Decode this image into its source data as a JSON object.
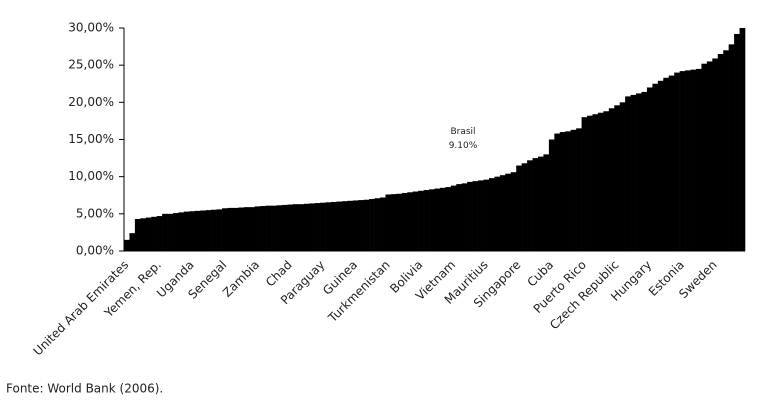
{
  "chart_data": {
    "type": "bar",
    "color": "#000000",
    "categories": [
      "United Arab Emirates",
      null,
      null,
      null,
      null,
      null,
      "Yemen, Rep.",
      null,
      null,
      null,
      null,
      null,
      "Uganda",
      null,
      null,
      null,
      null,
      null,
      "Senegal",
      null,
      null,
      null,
      null,
      null,
      "Zambia",
      null,
      null,
      null,
      null,
      null,
      "Chad",
      null,
      null,
      null,
      null,
      null,
      "Paraguay",
      null,
      null,
      null,
      null,
      null,
      "Guinea",
      null,
      null,
      null,
      null,
      null,
      "Turkmenistan",
      null,
      null,
      null,
      null,
      null,
      "Bolivia",
      null,
      null,
      null,
      null,
      null,
      "Vietnam",
      null,
      null,
      null,
      null,
      null,
      "Mauritius",
      null,
      null,
      null,
      null,
      null,
      "Singapore",
      null,
      null,
      null,
      null,
      null,
      "Cuba",
      null,
      null,
      null,
      null,
      null,
      "Puerto Rico",
      null,
      null,
      null,
      null,
      null,
      "Czech Republic",
      null,
      null,
      null,
      null,
      null,
      "Hungary",
      null,
      null,
      null,
      null,
      null,
      "Estonia",
      null,
      null,
      null,
      null,
      null,
      "Sweden",
      null,
      null,
      null,
      null,
      null
    ],
    "values": [
      1.5,
      2.4,
      4.3,
      4.4,
      4.5,
      4.6,
      4.7,
      5.0,
      5.0,
      5.1,
      5.2,
      5.3,
      5.35,
      5.4,
      5.45,
      5.5,
      5.55,
      5.6,
      5.75,
      5.8,
      5.8,
      5.85,
      5.9,
      5.9,
      6.0,
      6.05,
      6.1,
      6.1,
      6.15,
      6.2,
      6.25,
      6.3,
      6.3,
      6.35,
      6.4,
      6.45,
      6.5,
      6.55,
      6.6,
      6.65,
      6.7,
      6.75,
      6.8,
      6.85,
      6.9,
      7.0,
      7.1,
      7.2,
      7.6,
      7.65,
      7.7,
      7.8,
      7.9,
      8.0,
      8.1,
      8.2,
      8.3,
      8.4,
      8.5,
      8.6,
      8.8,
      9.0,
      9.1,
      9.3,
      9.4,
      9.5,
      9.6,
      9.8,
      10.0,
      10.2,
      10.4,
      10.6,
      11.5,
      11.8,
      12.2,
      12.5,
      12.7,
      13.0,
      15.0,
      15.8,
      16.0,
      16.1,
      16.3,
      16.5,
      18.0,
      18.2,
      18.4,
      18.6,
      18.8,
      19.2,
      19.6,
      20.0,
      20.8,
      21.0,
      21.2,
      21.4,
      22.0,
      22.5,
      22.9,
      23.3,
      23.6,
      24.0,
      24.2,
      24.3,
      24.4,
      24.5,
      25.2,
      25.5,
      25.9,
      26.5,
      27.0,
      27.8,
      29.2,
      30.0
    ],
    "ylim": [
      0,
      30
    ],
    "yticks": [
      {
        "value": 0,
        "label": "0,00%"
      },
      {
        "value": 5,
        "label": "5,00%"
      },
      {
        "value": 10,
        "label": "10,00%"
      },
      {
        "value": 15,
        "label": "15,00%"
      },
      {
        "value": 20,
        "label": "20,00%"
      },
      {
        "value": 25,
        "label": "25,00%"
      },
      {
        "value": 30,
        "label": "30,00%"
      }
    ],
    "annotation": {
      "text": "Brasil",
      "value": 9.1,
      "value_label": "9.10%"
    },
    "source": "Fonte: World Bank (2006)."
  }
}
